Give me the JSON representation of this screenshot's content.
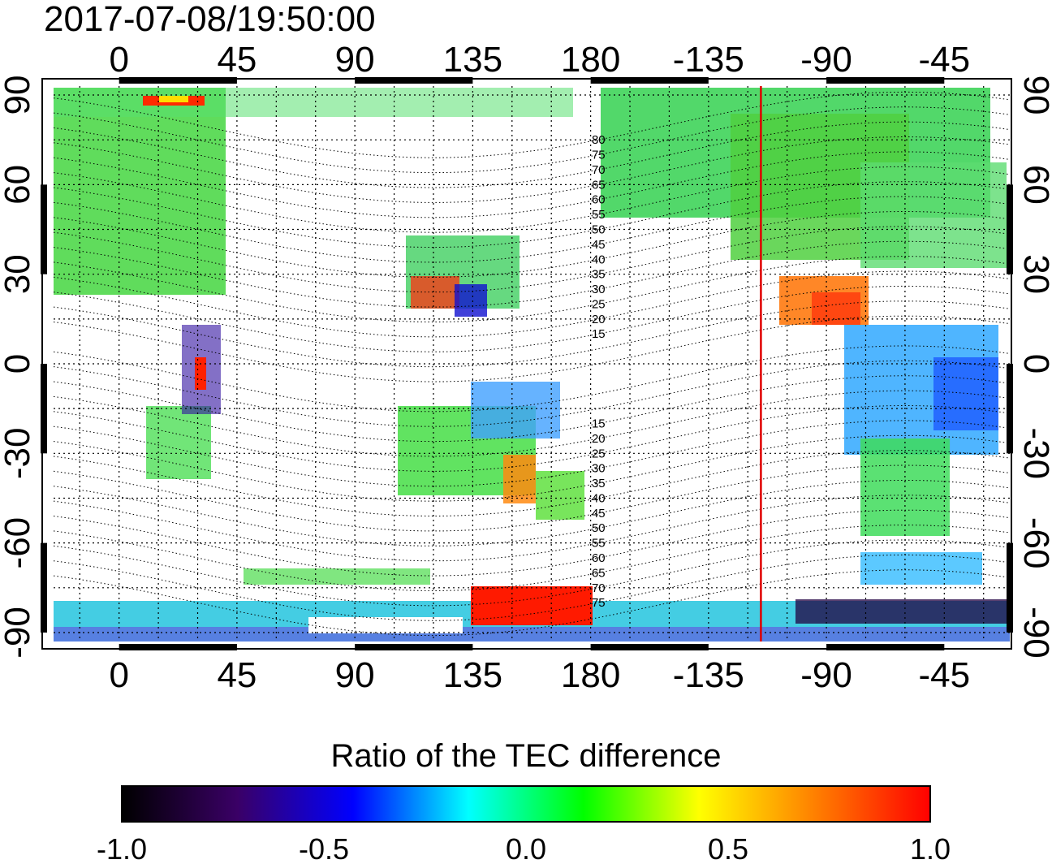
{
  "header": {
    "timestamp": "2017-07-08/19:50:00"
  },
  "map": {
    "projection": "equirectangular",
    "lon_range_deg": [
      -25,
      340
    ],
    "lat_range_deg": [
      -93,
      93
    ],
    "lon_ticks": [
      "0",
      "45",
      "90",
      "135",
      "180",
      "-135",
      "-90",
      "-45"
    ],
    "lat_ticks_left": [
      "90",
      "60",
      "30",
      "0",
      "-30",
      "-60",
      "-90"
    ],
    "lat_ticks_right": [
      "90",
      "60",
      "30",
      "0",
      "-30",
      "-60",
      "-90"
    ],
    "magnetic_latitude_labels_north": [
      "80",
      "75",
      "70",
      "65",
      "60",
      "55",
      "50",
      "45",
      "40",
      "35",
      "30",
      "25",
      "20",
      "15"
    ],
    "magnetic_latitude_labels_south": [
      "15",
      "20",
      "25",
      "30",
      "35",
      "40",
      "45",
      "50",
      "55",
      "60",
      "65",
      "70",
      "75"
    ],
    "marker_line_lon_deg": -115,
    "marker_line_color": "#e00000",
    "grid_lines": "dotted"
  },
  "colorbar": {
    "title": "Ratio of the TEC difference",
    "min": -1.0,
    "max": 1.0,
    "tick_labels": [
      "-1.0",
      "-0.5",
      "0.0",
      "0.5",
      "1.0"
    ],
    "stops": [
      "#000000",
      "#3a0066",
      "#0000ff",
      "#00ffff",
      "#00ff00",
      "#ffff00",
      "#ff8000",
      "#ff0000"
    ]
  }
}
